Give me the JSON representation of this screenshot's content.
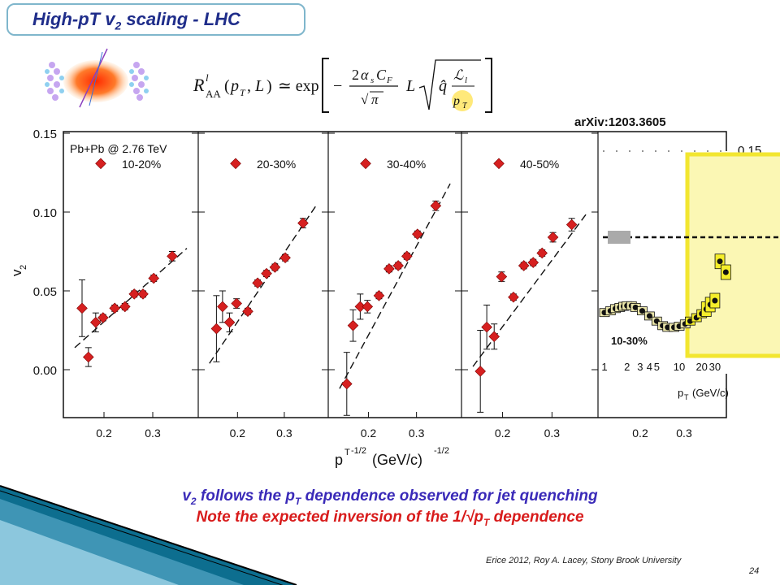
{
  "slide": {
    "title_main": "High-pT v",
    "title_sub": "2",
    "title_rest": " scaling - LHC",
    "arxiv": "arXiv:1203.3605",
    "line1_a": "v",
    "line1_sub": "2",
    "line1_b": " follows the p",
    "line1_sub2": "T",
    "line1_c": " dependence observed for jet quenching",
    "line2_a": "Note the expected inversion of the 1/√p",
    "line2_sub": "T",
    "line2_b": " dependence",
    "footer": "Erice 2012, Roy A. Lacey, Stony Brook University",
    "page_number": "24",
    "formula": "R^l_AA(p_T, L) ≃ exp[ − (2α_s C_F / √π) L √( q̂ L_l / p_T ) ]"
  },
  "chart_data": [
    {
      "type": "scatter",
      "ylabel": "v2",
      "xlabel": "pT^-1/2 (GeV/c)^-1/2",
      "xlim": [
        0.13,
        0.38
      ],
      "ylim": [
        -0.025,
        0.16
      ],
      "yticks": [
        "0.00",
        "0.05",
        "0.10",
        "0.15"
      ],
      "xticks": [
        "0.2",
        "0.3"
      ],
      "panels": [
        {
          "system_label": "Pb+Pb @ 2.76 TeV",
          "series_label": "10-20%",
          "points": [
            {
              "x": 0.155,
              "y": 0.039,
              "err": 0.018
            },
            {
              "x": 0.168,
              "y": 0.008,
              "err": 0.006
            },
            {
              "x": 0.183,
              "y": 0.03,
              "err": 0.006
            },
            {
              "x": 0.198,
              "y": 0.033,
              "err": 0.002
            },
            {
              "x": 0.222,
              "y": 0.039,
              "err": 0.002
            },
            {
              "x": 0.243,
              "y": 0.04,
              "err": 0.002
            },
            {
              "x": 0.262,
              "y": 0.048,
              "err": 0.002
            },
            {
              "x": 0.28,
              "y": 0.048,
              "err": 0.002
            },
            {
              "x": 0.302,
              "y": 0.058,
              "err": 0.002
            },
            {
              "x": 0.34,
              "y": 0.072,
              "err": 0.003
            }
          ],
          "fit": {
            "x0": 0.14,
            "y0": 0.014,
            "x1": 0.37,
            "y1": 0.077
          }
        },
        {
          "series_label": "20-30%",
          "points": [
            {
              "x": 0.155,
              "y": 0.026,
              "err": 0.021
            },
            {
              "x": 0.168,
              "y": 0.04,
              "err": 0.01
            },
            {
              "x": 0.183,
              "y": 0.03,
              "err": 0.006
            },
            {
              "x": 0.198,
              "y": 0.042,
              "err": 0.003
            },
            {
              "x": 0.222,
              "y": 0.037,
              "err": 0.002
            },
            {
              "x": 0.243,
              "y": 0.055,
              "err": 0.002
            },
            {
              "x": 0.262,
              "y": 0.061,
              "err": 0.002
            },
            {
              "x": 0.28,
              "y": 0.065,
              "err": 0.002
            },
            {
              "x": 0.302,
              "y": 0.071,
              "err": 0.002
            },
            {
              "x": 0.34,
              "y": 0.093,
              "err": 0.003
            }
          ],
          "fit": {
            "x0": 0.14,
            "y0": 0.004,
            "x1": 0.37,
            "y1": 0.105
          }
        },
        {
          "series_label": "30-40%",
          "points": [
            {
              "x": 0.155,
              "y": -0.009,
              "err": 0.02
            },
            {
              "x": 0.168,
              "y": 0.028,
              "err": 0.01
            },
            {
              "x": 0.183,
              "y": 0.04,
              "err": 0.008
            },
            {
              "x": 0.198,
              "y": 0.04,
              "err": 0.004
            },
            {
              "x": 0.222,
              "y": 0.047,
              "err": 0.002
            },
            {
              "x": 0.243,
              "y": 0.064,
              "err": 0.002
            },
            {
              "x": 0.262,
              "y": 0.066,
              "err": 0.002
            },
            {
              "x": 0.28,
              "y": 0.072,
              "err": 0.002
            },
            {
              "x": 0.302,
              "y": 0.086,
              "err": 0.002
            },
            {
              "x": 0.34,
              "y": 0.104,
              "err": 0.003
            }
          ],
          "fit": {
            "x0": 0.14,
            "y0": -0.012,
            "x1": 0.37,
            "y1": 0.118
          }
        },
        {
          "series_label": "40-50%",
          "points": [
            {
              "x": 0.155,
              "y": -0.001,
              "err": 0.026
            },
            {
              "x": 0.168,
              "y": 0.027,
              "err": 0.014
            },
            {
              "x": 0.183,
              "y": 0.021,
              "err": 0.008
            },
            {
              "x": 0.198,
              "y": 0.059,
              "err": 0.003
            },
            {
              "x": 0.222,
              "y": 0.046,
              "err": 0.002
            },
            {
              "x": 0.243,
              "y": 0.066,
              "err": 0.002
            },
            {
              "x": 0.262,
              "y": 0.068,
              "err": 0.002
            },
            {
              "x": 0.28,
              "y": 0.074,
              "err": 0.002
            },
            {
              "x": 0.302,
              "y": 0.084,
              "err": 0.003
            },
            {
              "x": 0.34,
              "y": 0.092,
              "err": 0.004
            }
          ],
          "fit": {
            "x0": 0.14,
            "y0": 0.002,
            "x1": 0.37,
            "y1": 0.099
          }
        }
      ]
    },
    {
      "type": "scatter",
      "xlabel": "pT (GeV/c)",
      "xscale": "log",
      "series_label": "10-30%",
      "xtick_labels": [
        "1",
        "2",
        "3",
        "4",
        "5",
        "10",
        "20",
        "30"
      ],
      "top_label": "0.15",
      "points": [
        {
          "x": 1.0,
          "y": 1.29
        },
        {
          "x": 1.2,
          "y": 1.32
        },
        {
          "x": 1.4,
          "y": 1.36
        },
        {
          "x": 1.6,
          "y": 1.38
        },
        {
          "x": 1.8,
          "y": 1.4
        },
        {
          "x": 2.0,
          "y": 1.41
        },
        {
          "x": 2.3,
          "y": 1.41
        },
        {
          "x": 2.6,
          "y": 1.38
        },
        {
          "x": 3.2,
          "y": 1.32
        },
        {
          "x": 4.0,
          "y": 1.23
        },
        {
          "x": 5.0,
          "y": 1.14
        },
        {
          "x": 6.0,
          "y": 1.06
        },
        {
          "x": 7.0,
          "y": 1.03
        },
        {
          "x": 8.5,
          "y": 1.03
        },
        {
          "x": 10.0,
          "y": 1.05
        },
        {
          "x": 12.0,
          "y": 1.09
        },
        {
          "x": 14.0,
          "y": 1.14
        },
        {
          "x": 17.0,
          "y": 1.2
        },
        {
          "x": 20.0,
          "y": 1.27
        },
        {
          "x": 23.0,
          "y": 1.35
        },
        {
          "x": 26.0,
          "y": 1.43
        },
        {
          "x": 30.0,
          "y": 1.5
        },
        {
          "x": 35.0,
          "y": 2.19
        },
        {
          "x": 42.0,
          "y": 2.0
        }
      ],
      "reference_line": 2.5,
      "highlight_range": [
        10,
        60
      ]
    }
  ]
}
